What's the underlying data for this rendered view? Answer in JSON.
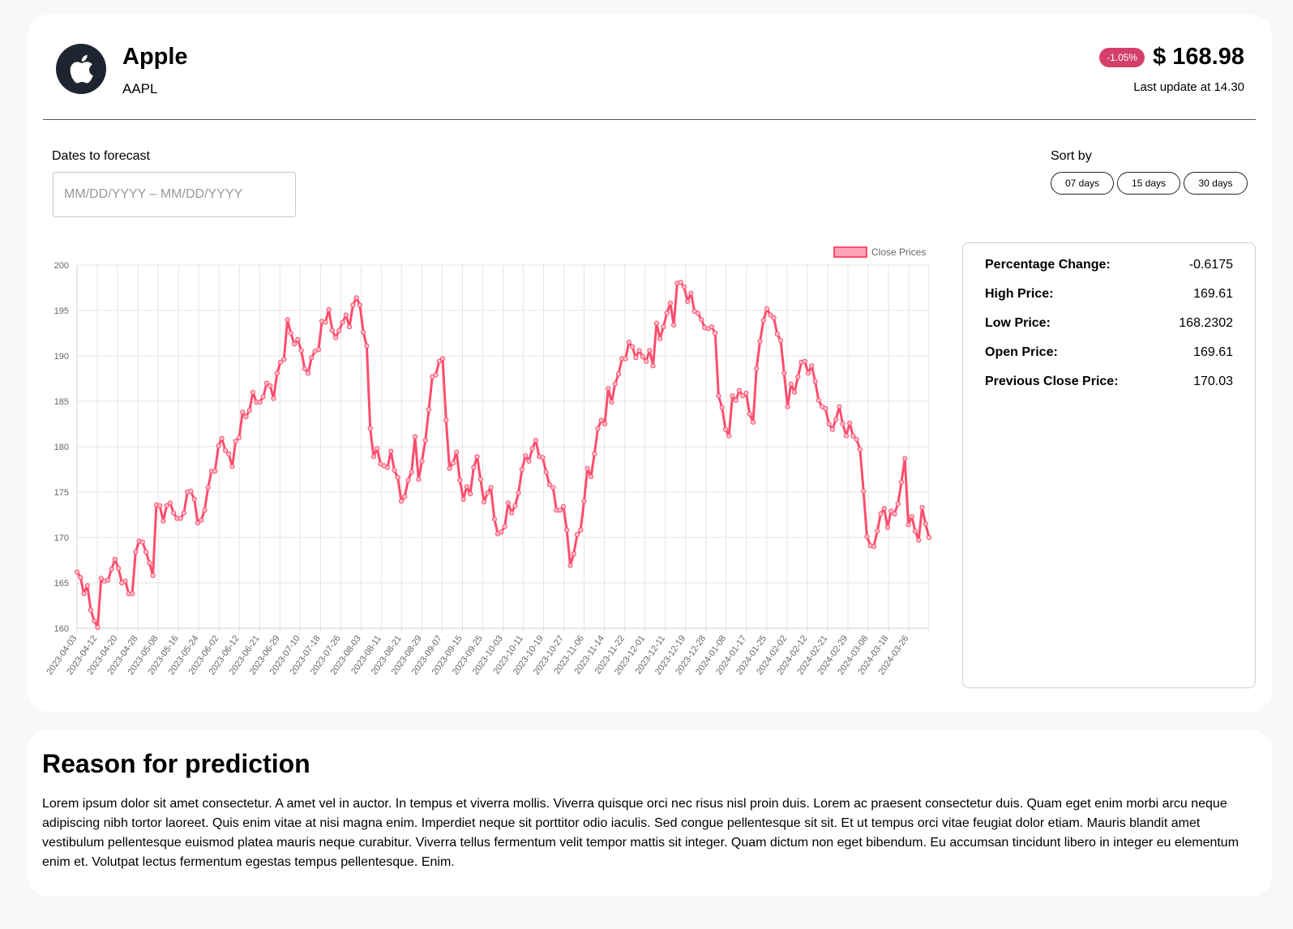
{
  "header": {
    "logo_icon": "apple-logo-icon",
    "company_name": "Apple",
    "ticker": "AAPL",
    "change_badge": "-1.05%",
    "price": "$ 168.98",
    "last_update": "Last update at 14.30"
  },
  "colors": {
    "accent": "#ff4d6d",
    "badge": "#d4406a"
  },
  "forecast": {
    "label": "Dates to forecast",
    "placeholder": "MM/DD/YYYY – MM/DD/YYYY"
  },
  "sort": {
    "label": "Sort by",
    "options": [
      "07 days",
      "15 days",
      "30 days"
    ]
  },
  "stats": [
    {
      "label": "Percentage Change:",
      "value": "-0.6175"
    },
    {
      "label": "High Price:",
      "value": "169.61"
    },
    {
      "label": "Low Price:",
      "value": "168.2302"
    },
    {
      "label": "Open Price:",
      "value": "169.61"
    },
    {
      "label": "Previous Close Price:",
      "value": "170.03"
    }
  ],
  "reason": {
    "title": "Reason for prediction",
    "text": "Lorem ipsum dolor sit amet consectetur. A amet vel in auctor. In tempus et viverra mollis. Viverra quisque orci nec risus nisl proin duis. Lorem ac praesent consectetur duis. Quam eget enim morbi arcu neque adipiscing nibh tortor laoreet. Quis enim vitae at nisi magna enim. Imperdiet neque sit porttitor odio iaculis. Sed congue pellentesque sit sit. Et ut tempus orci vitae feugiat dolor etiam. Mauris blandit amet vestibulum pellentesque euismod platea mauris neque curabitur. Viverra tellus fermentum velit tempor mattis sit integer. Quam dictum non eget bibendum. Eu accumsan tincidunt libero in integer eu elementum enim et. Volutpat lectus fermentum egestas tempus pellentesque. Enim."
  },
  "chart_data": {
    "type": "line",
    "legend": "Close Prices",
    "legend_position": "top-right",
    "grid": true,
    "ylim": [
      160,
      200
    ],
    "yticks": [
      160,
      165,
      170,
      175,
      180,
      185,
      190,
      195,
      200
    ],
    "xticks": [
      "2023-04-03",
      "2023-04-12",
      "2023-04-20",
      "2023-04-28",
      "2023-05-08",
      "2023-05-16",
      "2023-05-24",
      "2023-06-02",
      "2023-06-12",
      "2023-06-21",
      "2023-06-29",
      "2023-07-10",
      "2023-07-18",
      "2023-07-26",
      "2023-08-03",
      "2023-08-11",
      "2023-08-21",
      "2023-08-29",
      "2023-09-07",
      "2023-09-15",
      "2023-09-25",
      "2023-10-03",
      "2023-10-11",
      "2023-10-19",
      "2023-10-27",
      "2023-11-06",
      "2023-11-14",
      "2023-11-22",
      "2023-12-01",
      "2023-12-11",
      "2023-12-19",
      "2023-12-28",
      "2024-01-08",
      "2024-01-17",
      "2024-01-25",
      "2024-02-02",
      "2024-02-12",
      "2024-02-21",
      "2024-02-29",
      "2024-03-08",
      "2024-03-18",
      "2024-03-26"
    ],
    "values": [
      166.2,
      165.6,
      163.8,
      164.7,
      162.0,
      160.8,
      160.1,
      165.5,
      165.2,
      165.3,
      166.5,
      167.6,
      166.6,
      165.0,
      165.2,
      163.8,
      163.8,
      168.4,
      169.6,
      169.5,
      168.4,
      167.2,
      165.8,
      173.6,
      173.5,
      171.8,
      173.5,
      173.8,
      172.7,
      172.1,
      172.1,
      172.7,
      175.0,
      175.1,
      174.2,
      171.6,
      171.9,
      173.0,
      175.5,
      177.3,
      177.3,
      180.1,
      180.9,
      179.6,
      179.2,
      177.8,
      180.6,
      181.0,
      183.8,
      183.3,
      184.0,
      186.0,
      184.9,
      184.9,
      185.5,
      187.0,
      186.7,
      185.3,
      188.1,
      189.3,
      189.6,
      194.0,
      192.5,
      191.3,
      191.8,
      190.6,
      188.6,
      188.1,
      189.8,
      190.5,
      190.7,
      193.8,
      193.7,
      195.1,
      192.8,
      192.0,
      192.8,
      193.7,
      194.5,
      193.2,
      195.6,
      196.4,
      195.6,
      192.6,
      191.1,
      182.0,
      178.9,
      179.8,
      178.1,
      177.9,
      177.7,
      179.5,
      177.4,
      176.6,
      174.0,
      174.5,
      176.3,
      177.2,
      181.1,
      176.4,
      178.4,
      180.7,
      184.1,
      187.7,
      187.9,
      189.4,
      189.7,
      182.9,
      177.6,
      178.2,
      179.4,
      176.3,
      174.2,
      175.6,
      174.8,
      177.7,
      178.9,
      176.4,
      173.9,
      174.9,
      175.5,
      172.0,
      170.4,
      170.6,
      171.2,
      173.8,
      172.7,
      173.5,
      174.9,
      177.5,
      179.0,
      178.4,
      179.8,
      180.7,
      178.9,
      178.8,
      177.2,
      175.8,
      175.5,
      173.0,
      173.0,
      173.4,
      170.8,
      166.9,
      168.2,
      170.3,
      170.8,
      174.0,
      177.6,
      176.7,
      179.2,
      182.0,
      182.9,
      182.5,
      186.4,
      184.9,
      186.9,
      188.0,
      189.7,
      189.7,
      191.5,
      191.0,
      189.8,
      190.6,
      189.9,
      189.4,
      190.6,
      188.9,
      193.6,
      191.9,
      193.2,
      194.7,
      195.8,
      193.4,
      198.0,
      198.1,
      197.6,
      196.0,
      196.9,
      194.9,
      194.7,
      194.0,
      193.1,
      193.0,
      193.2,
      192.5,
      185.6,
      184.3,
      181.9,
      181.2,
      185.6,
      185.1,
      186.2,
      185.6,
      185.9,
      183.6,
      182.7,
      188.6,
      191.6,
      193.9,
      195.2,
      194.5,
      194.2,
      192.4,
      191.7,
      188.1,
      184.4,
      186.9,
      186.0,
      187.7,
      189.3,
      189.4,
      188.1,
      188.9,
      187.2,
      185.1,
      184.4,
      184.2,
      182.5,
      181.9,
      183.0,
      184.4,
      182.5,
      181.2,
      182.6,
      181.2,
      180.8,
      179.7,
      175.1,
      170.1,
      169.1,
      169.0,
      170.7,
      172.6,
      173.2,
      171.1,
      172.9,
      172.6,
      173.7,
      176.1,
      178.7,
      171.4,
      172.3,
      170.7,
      169.7,
      173.3,
      171.5,
      170.0
    ]
  }
}
